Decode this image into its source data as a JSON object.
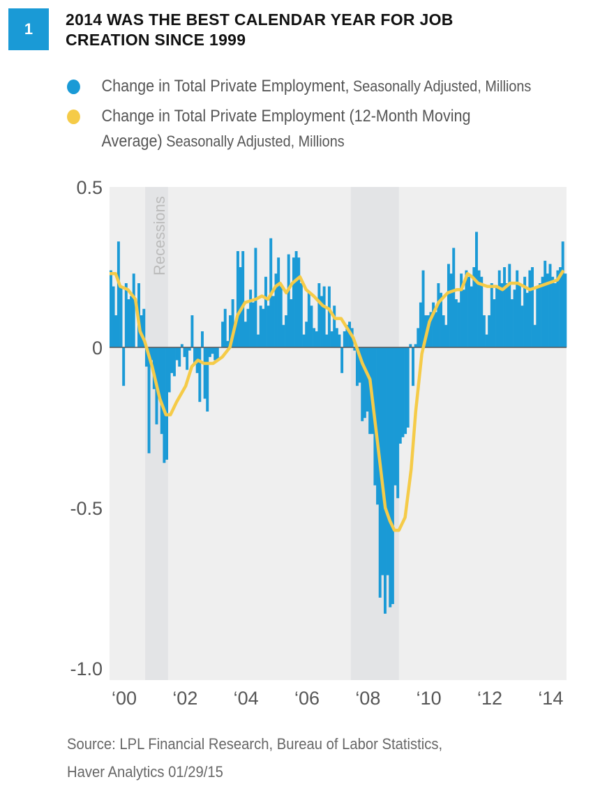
{
  "figure_number": "1",
  "title_line1": "2014 WAS THE BEST CALENDAR YEAR FOR JOB",
  "title_line2": "CREATION SINCE 1999",
  "legend": [
    {
      "main": "Change in Total Private Employment,",
      "sub": " Seasonally Adjusted, Millions",
      "color": "#1a9ad6"
    },
    {
      "main": "Change in Total Private Employment (12-Month Moving",
      "main2": "Average)",
      "sub": " Seasonally Adjusted, Millions",
      "color": "#f5cb48"
    }
  ],
  "source_line1": "Source: LPL Financial Research, Bureau of Labor Statistics,",
  "source_line2": "Haver Analytics   01/29/15",
  "chart_data": {
    "type": "bar",
    "title": "2014 WAS THE BEST CALENDAR YEAR FOR JOB CREATION SINCE 1999",
    "xlabel": "",
    "ylabel": "",
    "xlim": [
      2000,
      2015
    ],
    "ylim": [
      -1.0,
      0.5
    ],
    "y_ticks": [
      0.5,
      0,
      -0.5,
      -1.0
    ],
    "y_tick_labels": [
      "0.5",
      "0",
      "-0.5",
      "-1.0"
    ],
    "x_ticks": [
      2000,
      2002,
      2004,
      2006,
      2008,
      2010,
      2012,
      2014
    ],
    "x_tick_labels": [
      "‘00",
      "‘02",
      "‘04",
      "‘06",
      "‘08",
      "‘10",
      "‘12",
      "‘14"
    ],
    "recession_label": "Recessions",
    "recessions": [
      [
        2001.17,
        2001.92
      ],
      [
        2007.92,
        2009.5
      ]
    ],
    "bar_color": "#1a9ad6",
    "line_color": "#f5cb48",
    "series": [
      {
        "name": "Change in Total Private Employment, Seasonally Adjusted, Millions",
        "type": "bar",
        "start": 2000,
        "frequency": "monthly",
        "values": [
          0.24,
          0.19,
          0.1,
          0.33,
          0.19,
          -0.12,
          0.2,
          0.15,
          0.16,
          0.23,
          0.0,
          0.2,
          0.1,
          0.12,
          -0.06,
          -0.33,
          -0.04,
          -0.13,
          -0.24,
          -0.15,
          -0.27,
          -0.36,
          -0.35,
          -0.14,
          -0.08,
          -0.09,
          -0.04,
          -0.06,
          0.01,
          -0.03,
          -0.07,
          -0.01,
          0.1,
          -0.05,
          -0.08,
          -0.17,
          0.05,
          -0.16,
          -0.2,
          -0.03,
          -0.02,
          -0.04,
          -0.04,
          0.0,
          0.08,
          0.12,
          0.02,
          0.1,
          0.15,
          0.07,
          0.3,
          0.25,
          0.3,
          0.08,
          0.12,
          0.18,
          0.14,
          0.31,
          0.04,
          0.13,
          0.12,
          0.22,
          0.13,
          0.34,
          0.16,
          0.23,
          0.28,
          0.19,
          0.07,
          0.1,
          0.29,
          0.15,
          0.28,
          0.3,
          0.28,
          0.2,
          0.04,
          0.08,
          0.17,
          0.13,
          0.06,
          0.05,
          0.2,
          0.16,
          0.19,
          0.04,
          0.19,
          0.05,
          0.13,
          0.06,
          0.04,
          -0.08,
          0.05,
          0.07,
          0.08,
          0.06,
          -0.01,
          -0.12,
          -0.11,
          -0.23,
          -0.22,
          -0.2,
          -0.27,
          -0.27,
          -0.43,
          -0.49,
          -0.78,
          -0.71,
          -0.83,
          -0.71,
          -0.81,
          -0.8,
          -0.43,
          -0.47,
          -0.3,
          -0.28,
          -0.27,
          -0.25,
          0.01,
          -0.12,
          0.01,
          0.06,
          0.14,
          0.24,
          0.1,
          0.1,
          0.11,
          0.14,
          0.11,
          0.2,
          0.17,
          0.1,
          0.07,
          0.26,
          0.23,
          0.31,
          0.15,
          0.14,
          0.23,
          0.18,
          0.24,
          0.22,
          0.19,
          0.25,
          0.36,
          0.24,
          0.22,
          0.1,
          0.04,
          0.1,
          0.2,
          0.15,
          0.19,
          0.24,
          0.2,
          0.25,
          0.2,
          0.26,
          0.15,
          0.18,
          0.24,
          0.2,
          0.13,
          0.22,
          0.17,
          0.24,
          0.25,
          0.07,
          0.19,
          0.2,
          0.22,
          0.27,
          0.23,
          0.26,
          0.22,
          0.2,
          0.24,
          0.25,
          0.33,
          0.23
        ]
      },
      {
        "name": "Change in Total Private Employment (12-Month Moving Average) Seasonally Adjusted, Millions",
        "type": "line",
        "points": [
          [
            2000.0,
            0.23
          ],
          [
            2000.2,
            0.23
          ],
          [
            2000.35,
            0.19
          ],
          [
            2000.6,
            0.18
          ],
          [
            2000.85,
            0.15
          ],
          [
            2001.0,
            0.05
          ],
          [
            2001.15,
            0.02
          ],
          [
            2001.4,
            -0.06
          ],
          [
            2001.65,
            -0.16
          ],
          [
            2001.85,
            -0.21
          ],
          [
            2002.0,
            -0.21
          ],
          [
            2002.2,
            -0.17
          ],
          [
            2002.5,
            -0.12
          ],
          [
            2002.7,
            -0.06
          ],
          [
            2002.9,
            -0.04
          ],
          [
            2003.1,
            -0.05
          ],
          [
            2003.4,
            -0.05
          ],
          [
            2003.7,
            -0.03
          ],
          [
            2003.95,
            0.0
          ],
          [
            2004.2,
            0.1
          ],
          [
            2004.45,
            0.14
          ],
          [
            2004.8,
            0.15
          ],
          [
            2005.0,
            0.16
          ],
          [
            2005.2,
            0.15
          ],
          [
            2005.45,
            0.19
          ],
          [
            2005.6,
            0.2
          ],
          [
            2005.8,
            0.17
          ],
          [
            2006.0,
            0.2
          ],
          [
            2006.25,
            0.22
          ],
          [
            2006.45,
            0.18
          ],
          [
            2006.7,
            0.16
          ],
          [
            2007.0,
            0.13
          ],
          [
            2007.2,
            0.12
          ],
          [
            2007.4,
            0.09
          ],
          [
            2007.6,
            0.09
          ],
          [
            2007.8,
            0.06
          ],
          [
            2008.0,
            0.03
          ],
          [
            2008.3,
            -0.05
          ],
          [
            2008.55,
            -0.1
          ],
          [
            2008.8,
            -0.3
          ],
          [
            2009.05,
            -0.5
          ],
          [
            2009.2,
            -0.54
          ],
          [
            2009.35,
            -0.57
          ],
          [
            2009.5,
            -0.57
          ],
          [
            2009.7,
            -0.53
          ],
          [
            2009.9,
            -0.38
          ],
          [
            2010.05,
            -0.2
          ],
          [
            2010.25,
            -0.02
          ],
          [
            2010.5,
            0.08
          ],
          [
            2010.8,
            0.14
          ],
          [
            2011.1,
            0.17
          ],
          [
            2011.4,
            0.18
          ],
          [
            2011.55,
            0.18
          ],
          [
            2011.75,
            0.23
          ],
          [
            2011.9,
            0.22
          ],
          [
            2012.1,
            0.2
          ],
          [
            2012.4,
            0.19
          ],
          [
            2012.7,
            0.19
          ],
          [
            2012.9,
            0.18
          ],
          [
            2013.15,
            0.2
          ],
          [
            2013.4,
            0.2
          ],
          [
            2013.6,
            0.19
          ],
          [
            2013.8,
            0.18
          ],
          [
            2014.1,
            0.19
          ],
          [
            2014.4,
            0.2
          ],
          [
            2014.7,
            0.21
          ],
          [
            2014.9,
            0.24
          ]
        ]
      }
    ]
  }
}
